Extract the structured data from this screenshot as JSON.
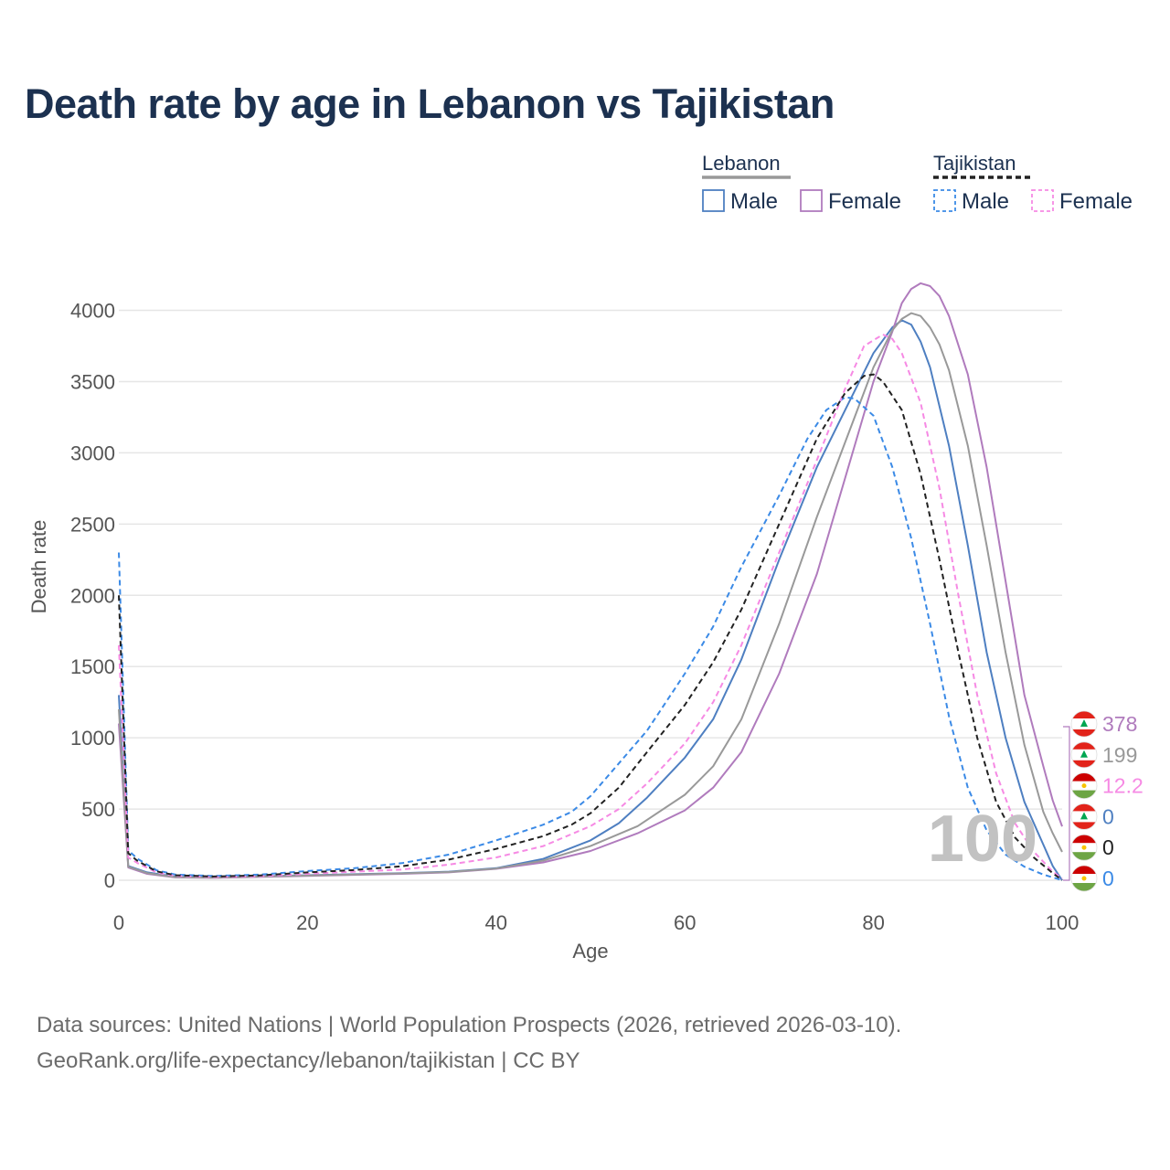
{
  "title": "Death rate by age in Lebanon vs Tajikistan",
  "sources": {
    "line1": "Data sources: United Nations | World Population Prospects (2026, retrieved 2026-03-10).",
    "line2": "GeoRank.org/life-expectancy/lebanon/tajikistan | CC BY"
  },
  "chart_data": {
    "type": "line",
    "xlabel": "Age",
    "ylabel": "Death rate",
    "xlim": [
      0,
      100
    ],
    "ylim": [
      0,
      4200
    ],
    "xticks": [
      0,
      20,
      40,
      60,
      80,
      100
    ],
    "yticks": [
      0,
      500,
      1000,
      1500,
      2000,
      2500,
      3000,
      3500,
      4000
    ],
    "grid": true,
    "watermark": "100",
    "legend": {
      "placement": "top-right",
      "groups": [
        {
          "name": "Lebanon",
          "line_color": "#999999",
          "dashed": false,
          "items": [
            {
              "label": "Male",
              "color": "#4e7fc1"
            },
            {
              "label": "Female",
              "color": "#b07bbd"
            }
          ]
        },
        {
          "name": "Tajikistan",
          "line_color": "#222222",
          "dashed": true,
          "items": [
            {
              "label": "Male",
              "color": "#3b8ae6"
            },
            {
              "label": "Female",
              "color": "#f68ae4"
            }
          ]
        }
      ]
    },
    "end_labels": [
      {
        "text": "378",
        "color": "#b07bbd",
        "flag": "lebanon"
      },
      {
        "text": "199",
        "color": "#999999",
        "flag": "lebanon"
      },
      {
        "text": "12.2",
        "color": "#f68ae4",
        "flag": "tajikistan"
      },
      {
        "text": "0",
        "color": "#4e7fc1",
        "flag": "lebanon"
      },
      {
        "text": "0",
        "color": "#222222",
        "flag": "tajikistan"
      },
      {
        "text": "0",
        "color": "#3b8ae6",
        "flag": "tajikistan"
      }
    ],
    "series": [
      {
        "name": "Lebanon Male",
        "color": "#4e7fc1",
        "dashed": false,
        "points": [
          [
            0,
            1300
          ],
          [
            1,
            100
          ],
          [
            3,
            55
          ],
          [
            6,
            25
          ],
          [
            10,
            20
          ],
          [
            20,
            35
          ],
          [
            30,
            50
          ],
          [
            35,
            60
          ],
          [
            40,
            85
          ],
          [
            45,
            150
          ],
          [
            50,
            280
          ],
          [
            53,
            400
          ],
          [
            56,
            580
          ],
          [
            60,
            860
          ],
          [
            63,
            1130
          ],
          [
            66,
            1550
          ],
          [
            70,
            2250
          ],
          [
            74,
            2900
          ],
          [
            77,
            3300
          ],
          [
            80,
            3700
          ],
          [
            82,
            3880
          ],
          [
            83,
            3930
          ],
          [
            84,
            3900
          ],
          [
            85,
            3780
          ],
          [
            86,
            3600
          ],
          [
            88,
            3050
          ],
          [
            90,
            2350
          ],
          [
            92,
            1600
          ],
          [
            94,
            1000
          ],
          [
            96,
            550
          ],
          [
            98,
            250
          ],
          [
            99,
            100
          ],
          [
            100,
            0
          ]
        ]
      },
      {
        "name": "Lebanon Female",
        "color": "#b07bbd",
        "dashed": false,
        "points": [
          [
            0,
            1100
          ],
          [
            1,
            90
          ],
          [
            3,
            45
          ],
          [
            6,
            20
          ],
          [
            10,
            17
          ],
          [
            20,
            30
          ],
          [
            30,
            45
          ],
          [
            35,
            55
          ],
          [
            40,
            80
          ],
          [
            45,
            125
          ],
          [
            50,
            205
          ],
          [
            55,
            330
          ],
          [
            60,
            490
          ],
          [
            63,
            650
          ],
          [
            66,
            900
          ],
          [
            70,
            1450
          ],
          [
            74,
            2150
          ],
          [
            78,
            3050
          ],
          [
            80,
            3500
          ],
          [
            82,
            3850
          ],
          [
            83,
            4050
          ],
          [
            84,
            4150
          ],
          [
            85,
            4190
          ],
          [
            86,
            4170
          ],
          [
            87,
            4100
          ],
          [
            88,
            3960
          ],
          [
            90,
            3550
          ],
          [
            92,
            2900
          ],
          [
            94,
            2100
          ],
          [
            96,
            1300
          ],
          [
            98,
            800
          ],
          [
            99,
            560
          ],
          [
            100,
            378
          ]
        ]
      },
      {
        "name": "Lebanon Total",
        "color": "#999999",
        "dashed": false,
        "points": [
          [
            0,
            1200
          ],
          [
            1,
            95
          ],
          [
            3,
            50
          ],
          [
            6,
            22
          ],
          [
            10,
            18
          ],
          [
            20,
            33
          ],
          [
            30,
            48
          ],
          [
            35,
            58
          ],
          [
            40,
            82
          ],
          [
            45,
            138
          ],
          [
            50,
            240
          ],
          [
            55,
            380
          ],
          [
            60,
            600
          ],
          [
            63,
            800
          ],
          [
            66,
            1130
          ],
          [
            70,
            1800
          ],
          [
            74,
            2550
          ],
          [
            78,
            3250
          ],
          [
            80,
            3600
          ],
          [
            82,
            3860
          ],
          [
            83,
            3940
          ],
          [
            84,
            3980
          ],
          [
            85,
            3960
          ],
          [
            86,
            3880
          ],
          [
            87,
            3760
          ],
          [
            88,
            3580
          ],
          [
            90,
            3050
          ],
          [
            92,
            2350
          ],
          [
            94,
            1600
          ],
          [
            96,
            950
          ],
          [
            98,
            480
          ],
          [
            99,
            330
          ],
          [
            100,
            199
          ]
        ]
      },
      {
        "name": "Tajikistan Male",
        "color": "#3b8ae6",
        "dashed": true,
        "points": [
          [
            0,
            2300
          ],
          [
            1,
            210
          ],
          [
            2,
            150
          ],
          [
            4,
            70
          ],
          [
            6,
            40
          ],
          [
            10,
            30
          ],
          [
            15,
            40
          ],
          [
            20,
            65
          ],
          [
            25,
            85
          ],
          [
            30,
            120
          ],
          [
            35,
            180
          ],
          [
            40,
            280
          ],
          [
            45,
            390
          ],
          [
            48,
            480
          ],
          [
            50,
            590
          ],
          [
            53,
            820
          ],
          [
            56,
            1050
          ],
          [
            60,
            1450
          ],
          [
            63,
            1780
          ],
          [
            66,
            2200
          ],
          [
            70,
            2700
          ],
          [
            73,
            3100
          ],
          [
            75,
            3300
          ],
          [
            77,
            3390
          ],
          [
            78,
            3380
          ],
          [
            80,
            3260
          ],
          [
            82,
            2900
          ],
          [
            84,
            2400
          ],
          [
            86,
            1800
          ],
          [
            88,
            1150
          ],
          [
            90,
            650
          ],
          [
            92,
            350
          ],
          [
            94,
            180
          ],
          [
            96,
            95
          ],
          [
            98,
            40
          ],
          [
            100,
            0
          ]
        ]
      },
      {
        "name": "Tajikistan Female",
        "color": "#f68ae4",
        "dashed": true,
        "points": [
          [
            0,
            1650
          ],
          [
            1,
            160
          ],
          [
            2,
            120
          ],
          [
            4,
            55
          ],
          [
            6,
            30
          ],
          [
            10,
            22
          ],
          [
            15,
            28
          ],
          [
            20,
            45
          ],
          [
            25,
            60
          ],
          [
            30,
            75
          ],
          [
            35,
            110
          ],
          [
            40,
            160
          ],
          [
            45,
            240
          ],
          [
            50,
            380
          ],
          [
            53,
            500
          ],
          [
            56,
            680
          ],
          [
            60,
            960
          ],
          [
            63,
            1250
          ],
          [
            66,
            1650
          ],
          [
            70,
            2300
          ],
          [
            74,
            2950
          ],
          [
            77,
            3450
          ],
          [
            79,
            3750
          ],
          [
            81,
            3830
          ],
          [
            82,
            3800
          ],
          [
            83,
            3700
          ],
          [
            85,
            3350
          ],
          [
            87,
            2750
          ],
          [
            89,
            2000
          ],
          [
            91,
            1300
          ],
          [
            93,
            750
          ],
          [
            95,
            400
          ],
          [
            97,
            200
          ],
          [
            99,
            60
          ],
          [
            100,
            12.2
          ]
        ]
      },
      {
        "name": "Tajikistan Total",
        "color": "#222222",
        "dashed": true,
        "points": [
          [
            0,
            2000
          ],
          [
            1,
            190
          ],
          [
            2,
            135
          ],
          [
            4,
            62
          ],
          [
            6,
            35
          ],
          [
            10,
            26
          ],
          [
            15,
            34
          ],
          [
            20,
            55
          ],
          [
            25,
            72
          ],
          [
            30,
            98
          ],
          [
            35,
            145
          ],
          [
            40,
            220
          ],
          [
            45,
            310
          ],
          [
            48,
            390
          ],
          [
            50,
            470
          ],
          [
            53,
            650
          ],
          [
            56,
            900
          ],
          [
            60,
            1230
          ],
          [
            63,
            1530
          ],
          [
            66,
            1900
          ],
          [
            70,
            2500
          ],
          [
            74,
            3100
          ],
          [
            77,
            3420
          ],
          [
            79,
            3540
          ],
          [
            80,
            3550
          ],
          [
            81,
            3500
          ],
          [
            83,
            3300
          ],
          [
            85,
            2850
          ],
          [
            87,
            2250
          ],
          [
            89,
            1600
          ],
          [
            91,
            1000
          ],
          [
            93,
            550
          ],
          [
            95,
            300
          ],
          [
            97,
            160
          ],
          [
            99,
            50
          ],
          [
            100,
            0
          ]
        ]
      }
    ]
  }
}
